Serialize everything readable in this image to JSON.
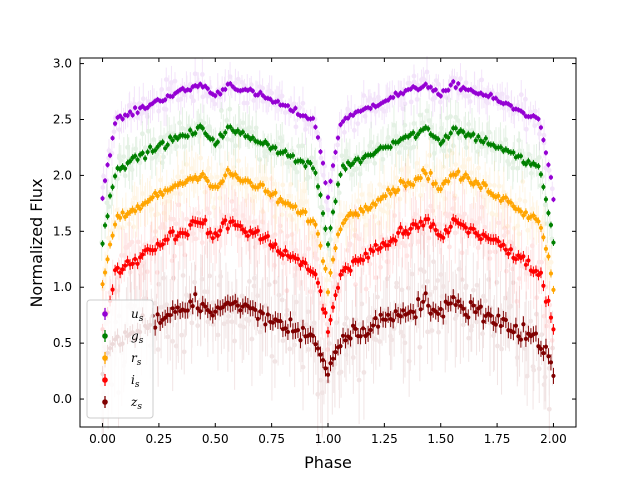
{
  "chart_data": {
    "type": "scatter",
    "title": "",
    "xlabel": "Phase",
    "ylabel": "Normalized Flux",
    "xlim": [
      -0.1,
      2.1
    ],
    "ylim": [
      -0.25,
      3.05
    ],
    "xticks": [
      "0.00",
      "0.25",
      "0.50",
      "0.75",
      "1.00",
      "1.25",
      "1.50",
      "1.75",
      "2.00"
    ],
    "yticks": [
      "0.0",
      "0.5",
      "1.0",
      "1.5",
      "2.0",
      "2.5",
      "3.0"
    ],
    "legend_position": "lower-left",
    "series": [
      {
        "name": "u",
        "subscript": "s",
        "color": "#9400D3",
        "base": 1.8,
        "plateau": 2.5,
        "peak": 2.8,
        "eclipse_depth": 0.7,
        "scatter": 0.04
      },
      {
        "name": "g",
        "subscript": "s",
        "color": "#008000",
        "base": 1.38,
        "plateau": 2.07,
        "peak": 2.4,
        "eclipse_depth": 0.7,
        "scatter": 0.05
      },
      {
        "name": "r",
        "subscript": "s",
        "color": "#FFA500",
        "base": 1.0,
        "plateau": 1.6,
        "peak": 2.0,
        "eclipse_depth": 0.62,
        "scatter": 0.06
      },
      {
        "name": "i",
        "subscript": "s",
        "color": "#FF0000",
        "base": 0.6,
        "plateau": 1.15,
        "peak": 1.57,
        "eclipse_depth": 0.57,
        "scatter": 0.08
      },
      {
        "name": "z",
        "subscript": "s",
        "color": "#800000",
        "base": 0.25,
        "plateau": 0.53,
        "peak": 0.85,
        "eclipse_depth": 0.3,
        "scatter": 0.12
      }
    ]
  }
}
